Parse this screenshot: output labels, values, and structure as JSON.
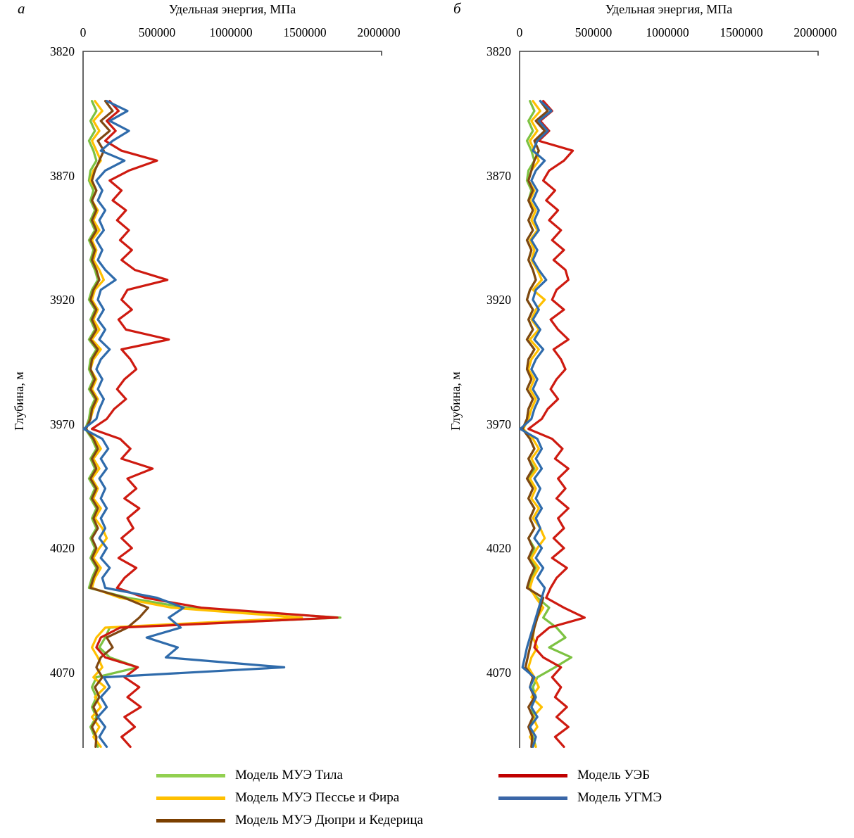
{
  "panel_labels": {
    "a": "а",
    "b": "б"
  },
  "axis": {
    "x_title": "Удельная энергия, МПа",
    "y_title": "Глубина, м",
    "x_ticks": [
      "0",
      "500000",
      "1000000",
      "1500000",
      "2000000"
    ],
    "y_ticks": [
      "3820",
      "3870",
      "3920",
      "3970",
      "4020",
      "4070"
    ]
  },
  "legend_left": [
    {
      "label": "Модель МУЭ Тила",
      "color": "#92D050"
    },
    {
      "label": "Модель МУЭ Пессье и Фира",
      "color": "#FFC000"
    },
    {
      "label": "Модель МУЭ Дюпри и Кедерица",
      "color": "#7B3F00"
    }
  ],
  "legend_right": [
    {
      "label": "Модель УЭБ",
      "color": "#C00000"
    },
    {
      "label": "Модель УГМЭ",
      "color": "#3A66A7"
    }
  ],
  "chart_data": [
    {
      "type": "line",
      "panel": "а",
      "title": "Удельная энергия, МПа",
      "xlabel": "Удельная энергия, МПа",
      "ylabel": "Глубина, м",
      "x_range": [
        0,
        2000000
      ],
      "depth_range": [
        3820,
        4110
      ],
      "grid": false,
      "legend_position": "bottom",
      "depths": [
        3840,
        3844,
        3848,
        3852,
        3856,
        3860,
        3864,
        3868,
        3872,
        3876,
        3880,
        3884,
        3888,
        3892,
        3896,
        3900,
        3904,
        3908,
        3912,
        3916,
        3920,
        3924,
        3928,
        3932,
        3936,
        3940,
        3944,
        3948,
        3952,
        3956,
        3960,
        3964,
        3968,
        3972,
        3976,
        3980,
        3984,
        3988,
        3992,
        3996,
        4000,
        4004,
        4008,
        4012,
        4016,
        4020,
        4024,
        4028,
        4032,
        4036,
        4040,
        4044,
        4048,
        4052,
        4056,
        4060,
        4064,
        4068,
        4072,
        4076,
        4080,
        4084,
        4088,
        4092,
        4096,
        4100
      ],
      "series": [
        {
          "name": "Модель МУЭ Тила",
          "color": "#7DC242",
          "values": [
            60000,
            90000,
            50000,
            80000,
            40000,
            70000,
            90000,
            50000,
            40000,
            70000,
            50000,
            80000,
            50000,
            80000,
            40000,
            70000,
            50000,
            80000,
            100000,
            60000,
            40000,
            80000,
            50000,
            80000,
            40000,
            90000,
            50000,
            40000,
            70000,
            40000,
            80000,
            50000,
            40000,
            15000,
            60000,
            90000,
            50000,
            80000,
            40000,
            80000,
            50000,
            90000,
            60000,
            90000,
            50000,
            80000,
            50000,
            90000,
            60000,
            40000,
            300000,
            700000,
            1740000,
            180000,
            150000,
            110000,
            180000,
            370000,
            90000,
            60000,
            90000,
            60000,
            90000,
            50000,
            80000,
            100000
          ]
        },
        {
          "name": "Модель МУЭ Пессье и Фира",
          "color": "#FFC000",
          "values": [
            80000,
            130000,
            70000,
            110000,
            60000,
            90000,
            120000,
            70000,
            50000,
            90000,
            60000,
            100000,
            70000,
            110000,
            60000,
            90000,
            70000,
            110000,
            140000,
            80000,
            60000,
            100000,
            70000,
            110000,
            60000,
            120000,
            70000,
            50000,
            90000,
            60000,
            100000,
            70000,
            50000,
            20000,
            80000,
            120000,
            70000,
            110000,
            60000,
            100000,
            70000,
            120000,
            80000,
            130000,
            160000,
            110000,
            70000,
            120000,
            80000,
            60000,
            250000,
            600000,
            1480000,
            150000,
            90000,
            60000,
            100000,
            130000,
            70000,
            150000,
            80000,
            120000,
            60000,
            110000,
            70000,
            120000
          ]
        },
        {
          "name": "Модель МУЭ Дюпри и Кедерица",
          "color": "#7F4712",
          "values": [
            150000,
            200000,
            120000,
            180000,
            100000,
            140000,
            110000,
            80000,
            60000,
            90000,
            60000,
            90000,
            60000,
            90000,
            50000,
            80000,
            60000,
            90000,
            110000,
            70000,
            50000,
            90000,
            60000,
            90000,
            50000,
            100000,
            60000,
            50000,
            80000,
            50000,
            90000,
            60000,
            50000,
            20000,
            70000,
            100000,
            60000,
            90000,
            50000,
            90000,
            60000,
            100000,
            70000,
            100000,
            60000,
            90000,
            60000,
            100000,
            70000,
            50000,
            280000,
            440000,
            380000,
            300000,
            160000,
            200000,
            120000,
            90000,
            130000,
            80000,
            110000,
            70000,
            100000,
            60000,
            90000,
            85000
          ]
        },
        {
          "name": "Модель УЭБ",
          "color": "#CE1A10",
          "values": [
            180000,
            240000,
            160000,
            220000,
            150000,
            260000,
            500000,
            310000,
            180000,
            260000,
            200000,
            290000,
            230000,
            310000,
            250000,
            330000,
            260000,
            350000,
            570000,
            300000,
            260000,
            330000,
            240000,
            290000,
            580000,
            260000,
            320000,
            360000,
            280000,
            230000,
            290000,
            210000,
            160000,
            60000,
            250000,
            320000,
            260000,
            470000,
            300000,
            360000,
            280000,
            380000,
            300000,
            340000,
            260000,
            330000,
            240000,
            360000,
            280000,
            230000,
            420000,
            800000,
            1720000,
            250000,
            120000,
            90000,
            150000,
            370000,
            280000,
            380000,
            300000,
            390000,
            280000,
            350000,
            260000,
            320000
          ]
        },
        {
          "name": "Модель УГМЭ",
          "color": "#2F6BAB",
          "values": [
            160000,
            300000,
            180000,
            310000,
            200000,
            120000,
            280000,
            150000,
            90000,
            130000,
            100000,
            150000,
            110000,
            140000,
            90000,
            130000,
            100000,
            150000,
            220000,
            120000,
            100000,
            140000,
            100000,
            150000,
            110000,
            180000,
            120000,
            90000,
            130000,
            100000,
            140000,
            110000,
            90000,
            5000,
            130000,
            170000,
            120000,
            160000,
            110000,
            150000,
            120000,
            160000,
            120000,
            150000,
            110000,
            160000,
            120000,
            180000,
            130000,
            150000,
            500000,
            680000,
            580000,
            660000,
            430000,
            640000,
            560000,
            1360000,
            140000,
            180000,
            120000,
            160000,
            100000,
            150000,
            110000,
            160000
          ]
        }
      ]
    },
    {
      "type": "line",
      "panel": "б",
      "title": "Удельная энергия, МПа",
      "xlabel": "Удельная энергия, МПа",
      "ylabel": "Глубина, м",
      "x_range": [
        0,
        2000000
      ],
      "depth_range": [
        3820,
        4110
      ],
      "grid": false,
      "legend_position": "bottom",
      "depths": [
        3840,
        3844,
        3848,
        3852,
        3856,
        3860,
        3864,
        3868,
        3872,
        3876,
        3880,
        3884,
        3888,
        3892,
        3896,
        3900,
        3904,
        3908,
        3912,
        3916,
        3920,
        3924,
        3928,
        3932,
        3936,
        3940,
        3944,
        3948,
        3952,
        3956,
        3960,
        3964,
        3968,
        3972,
        3976,
        3980,
        3984,
        3988,
        3992,
        3996,
        4000,
        4004,
        4008,
        4012,
        4016,
        4020,
        4024,
        4028,
        4032,
        4036,
        4040,
        4044,
        4048,
        4052,
        4056,
        4060,
        4064,
        4068,
        4072,
        4076,
        4080,
        4084,
        4088,
        4092,
        4096,
        4100
      ],
      "series": [
        {
          "name": "Модель МУЭ Тила",
          "color": "#7DC242",
          "values": [
            70000,
            100000,
            60000,
            90000,
            50000,
            80000,
            100000,
            60000,
            50000,
            80000,
            60000,
            90000,
            60000,
            90000,
            50000,
            80000,
            60000,
            90000,
            110000,
            70000,
            50000,
            90000,
            60000,
            90000,
            50000,
            100000,
            60000,
            50000,
            80000,
            50000,
            90000,
            60000,
            50000,
            20000,
            70000,
            100000,
            60000,
            100000,
            60000,
            90000,
            60000,
            100000,
            70000,
            100000,
            60000,
            100000,
            70000,
            110000,
            80000,
            60000,
            120000,
            200000,
            160000,
            250000,
            310000,
            200000,
            350000,
            240000,
            120000,
            90000,
            110000,
            80000,
            100000,
            70000,
            90000,
            110000
          ]
        },
        {
          "name": "Модель МУЭ Пессье и Фира",
          "color": "#FFC000",
          "values": [
            90000,
            140000,
            80000,
            120000,
            70000,
            100000,
            130000,
            80000,
            60000,
            100000,
            70000,
            110000,
            80000,
            120000,
            70000,
            100000,
            80000,
            120000,
            150000,
            90000,
            170000,
            110000,
            80000,
            130000,
            70000,
            130000,
            80000,
            60000,
            100000,
            70000,
            110000,
            80000,
            60000,
            25000,
            90000,
            130000,
            80000,
            120000,
            70000,
            110000,
            80000,
            130000,
            90000,
            140000,
            170000,
            120000,
            80000,
            130000,
            90000,
            70000,
            110000,
            160000,
            120000,
            100000,
            90000,
            120000,
            80000,
            60000,
            100000,
            130000,
            80000,
            150000,
            90000,
            120000,
            70000,
            110000
          ]
        },
        {
          "name": "Модель МУЭ Дюпри и Кедерица",
          "color": "#7F4712",
          "values": [
            140000,
            190000,
            110000,
            170000,
            100000,
            130000,
            100000,
            80000,
            60000,
            90000,
            60000,
            90000,
            60000,
            90000,
            50000,
            80000,
            60000,
            90000,
            110000,
            70000,
            50000,
            90000,
            60000,
            90000,
            50000,
            100000,
            60000,
            50000,
            80000,
            50000,
            90000,
            60000,
            50000,
            20000,
            70000,
            100000,
            60000,
            90000,
            50000,
            90000,
            60000,
            100000,
            70000,
            100000,
            60000,
            90000,
            60000,
            100000,
            70000,
            50000,
            160000,
            140000,
            120000,
            100000,
            85000,
            70000,
            55000,
            40000,
            90000,
            70000,
            100000,
            60000,
            90000,
            60000,
            85000,
            80000
          ]
        },
        {
          "name": "Модель УЭБ",
          "color": "#CE1A10",
          "values": [
            160000,
            220000,
            140000,
            200000,
            130000,
            360000,
            300000,
            200000,
            160000,
            240000,
            180000,
            260000,
            200000,
            280000,
            220000,
            300000,
            230000,
            310000,
            330000,
            250000,
            220000,
            300000,
            210000,
            260000,
            330000,
            230000,
            280000,
            310000,
            250000,
            210000,
            260000,
            190000,
            150000,
            60000,
            220000,
            290000,
            240000,
            330000,
            260000,
            310000,
            250000,
            330000,
            260000,
            300000,
            230000,
            300000,
            220000,
            320000,
            250000,
            210000,
            180000,
            300000,
            440000,
            200000,
            120000,
            100000,
            160000,
            280000,
            220000,
            280000,
            240000,
            320000,
            250000,
            330000,
            240000,
            300000
          ]
        },
        {
          "name": "Модель УГМЭ",
          "color": "#2F6BAB",
          "values": [
            140000,
            215000,
            130000,
            190000,
            120000,
            90000,
            170000,
            110000,
            80000,
            120000,
            90000,
            130000,
            100000,
            130000,
            80000,
            120000,
            90000,
            130000,
            180000,
            110000,
            90000,
            130000,
            90000,
            140000,
            100000,
            160000,
            110000,
            80000,
            120000,
            90000,
            130000,
            100000,
            80000,
            5000,
            120000,
            150000,
            110000,
            150000,
            100000,
            140000,
            110000,
            150000,
            110000,
            140000,
            100000,
            150000,
            110000,
            160000,
            120000,
            170000,
            150000,
            130000,
            110000,
            90000,
            70000,
            50000,
            35000,
            20000,
            100000,
            70000,
            110000,
            80000,
            120000,
            70000,
            110000,
            90000
          ]
        }
      ]
    }
  ]
}
